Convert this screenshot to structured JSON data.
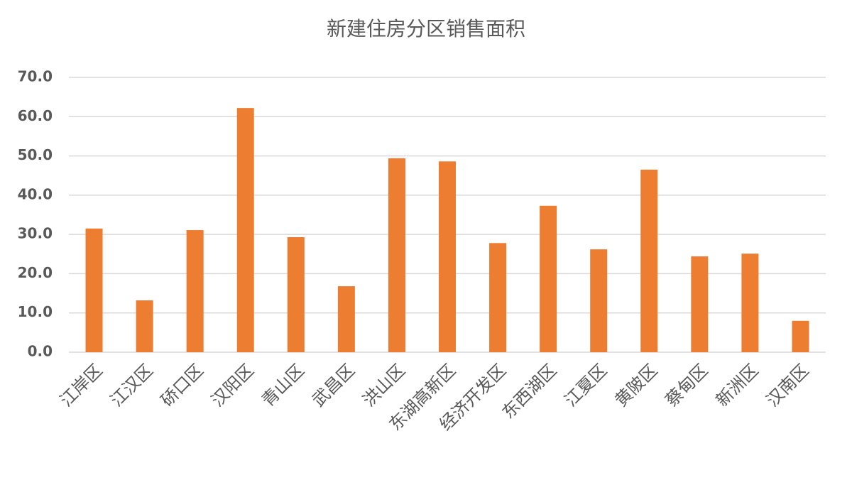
{
  "chart_data": {
    "type": "bar",
    "title": "新建住房分区销售面积",
    "categories": [
      "江岸区",
      "江汉区",
      "硚口区",
      "汉阳区",
      "青山区",
      "武昌区",
      "洪山区",
      "东湖高新区",
      "经济开发区",
      "东西湖区",
      "江夏区",
      "黄陂区",
      "蔡甸区",
      "新洲区",
      "汉南区"
    ],
    "values": [
      31.5,
      13.2,
      31.1,
      62.2,
      29.3,
      16.8,
      49.4,
      48.6,
      27.8,
      37.3,
      26.2,
      46.5,
      24.4,
      25.1,
      8.0
    ],
    "color": "#ed7d31",
    "ylim": [
      0,
      70
    ],
    "yticks": [
      {
        "value": 0,
        "label": "0.0"
      },
      {
        "value": 10,
        "label": "10.0"
      },
      {
        "value": 20,
        "label": "20.0"
      },
      {
        "value": 30,
        "label": "30.0"
      },
      {
        "value": 40,
        "label": "40.0"
      },
      {
        "value": 50,
        "label": "50.0"
      },
      {
        "value": 60,
        "label": "60.0"
      },
      {
        "value": 70,
        "label": "70.0"
      }
    ],
    "grid": true
  }
}
